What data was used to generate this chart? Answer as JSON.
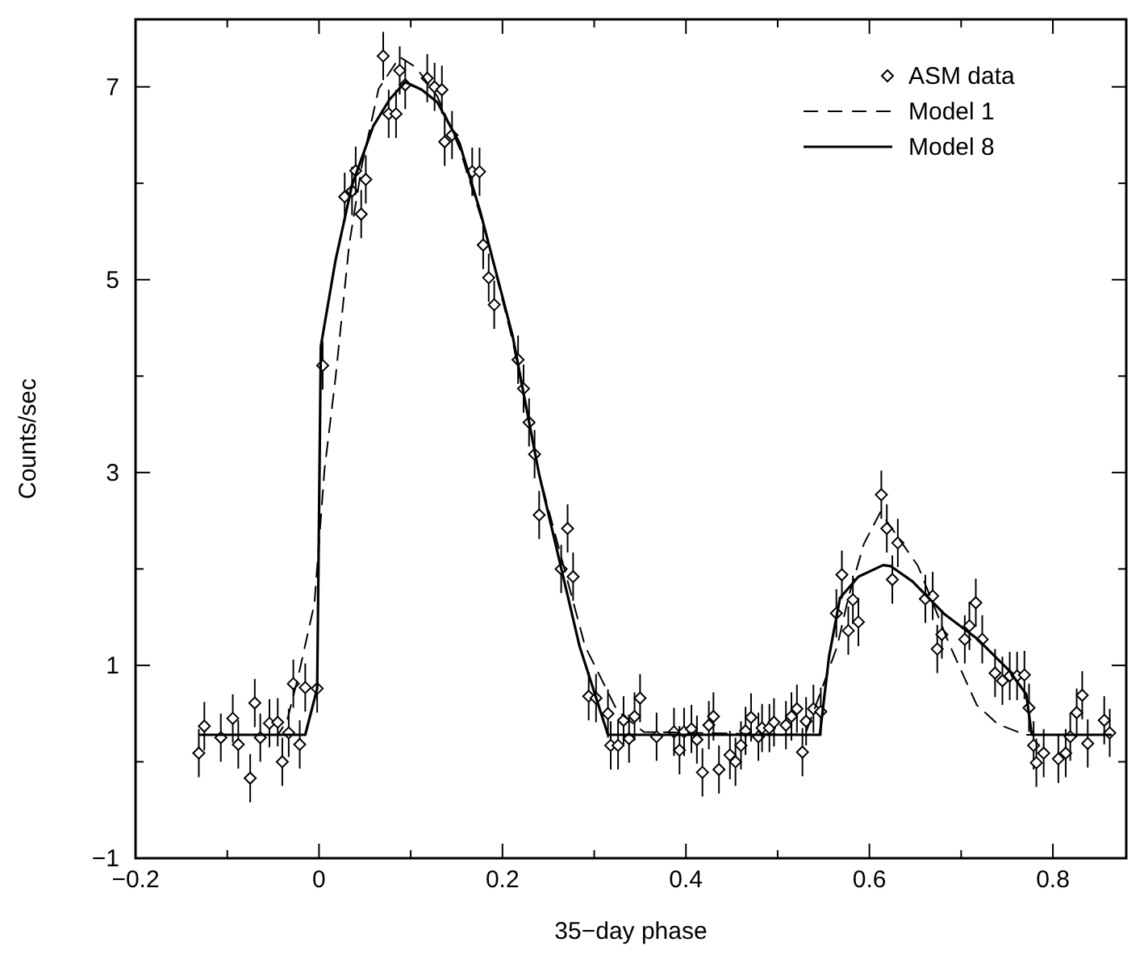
{
  "chart_data": {
    "type": "scatter",
    "xlabel": "35−day phase",
    "ylabel": "Counts/sec",
    "xlim": [
      -0.2,
      0.88
    ],
    "ylim": [
      -1,
      7.7
    ],
    "xticks": [
      {
        "value": -0.2,
        "label": "−0.2"
      },
      {
        "value": -0.1,
        "label": null
      },
      0,
      {
        "value": 0.1,
        "label": null
      },
      0.2,
      {
        "value": 0.3,
        "label": null
      },
      0.4,
      {
        "value": 0.5,
        "label": null
      },
      0.6,
      {
        "value": 0.7,
        "label": null
      },
      0.8
    ],
    "yticks": [
      {
        "value": -1,
        "label": "−1"
      },
      {
        "value": 0,
        "label": null
      },
      1,
      {
        "value": 2,
        "label": null
      },
      3,
      {
        "value": 4,
        "label": null
      },
      5,
      {
        "value": 6,
        "label": null
      },
      7
    ],
    "grid": false,
    "legend": "top right",
    "series": [
      {
        "name": "ASM data",
        "marker": "diamond",
        "color": "#000000",
        "x": [
          -0.131,
          -0.125,
          -0.107,
          -0.094,
          -0.088,
          -0.075,
          -0.07,
          -0.064,
          -0.054,
          -0.045,
          -0.04,
          -0.033,
          -0.028,
          -0.021,
          -0.015,
          -0.002,
          0.004,
          0.028,
          0.036,
          0.04,
          0.046,
          0.051,
          0.07,
          0.076,
          0.084,
          0.088,
          0.094,
          0.118,
          0.126,
          0.134,
          0.137,
          0.145,
          0.167,
          0.175,
          0.179,
          0.185,
          0.191,
          0.217,
          0.223,
          0.229,
          0.235,
          0.24,
          0.264,
          0.271,
          0.277,
          0.294,
          0.302,
          0.315,
          0.318,
          0.326,
          0.332,
          0.338,
          0.344,
          0.35,
          0.368,
          0.387,
          0.393,
          0.398,
          0.406,
          0.412,
          0.418,
          0.425,
          0.43,
          0.436,
          0.448,
          0.454,
          0.46,
          0.465,
          0.471,
          0.479,
          0.483,
          0.491,
          0.496,
          0.509,
          0.515,
          0.521,
          0.527,
          0.531,
          0.539,
          0.547,
          0.564,
          0.57,
          0.577,
          0.582,
          0.588,
          0.613,
          0.619,
          0.625,
          0.631,
          0.661,
          0.669,
          0.674,
          0.679,
          0.704,
          0.709,
          0.716,
          0.723,
          0.737,
          0.745,
          0.753,
          0.761,
          0.769,
          0.774,
          0.779,
          0.782,
          0.79,
          0.806,
          0.814,
          0.819,
          0.826,
          0.832,
          0.838,
          0.856,
          0.862
        ],
        "values": [
          0.09,
          0.37,
          0.25,
          0.45,
          0.18,
          -0.17,
          0.61,
          0.25,
          0.4,
          0.41,
          0.0,
          0.3,
          0.81,
          0.18,
          0.77,
          0.76,
          4.11,
          5.86,
          5.92,
          6.13,
          5.68,
          6.04,
          7.32,
          6.72,
          6.72,
          7.17,
          7.02,
          7.09,
          7.0,
          6.97,
          6.43,
          6.5,
          6.12,
          6.12,
          5.36,
          5.02,
          4.74,
          4.17,
          3.87,
          3.52,
          3.19,
          2.56,
          2.0,
          2.42,
          1.92,
          0.68,
          0.66,
          0.5,
          0.17,
          0.17,
          0.43,
          0.24,
          0.47,
          0.66,
          0.26,
          0.31,
          0.12,
          0.31,
          0.34,
          0.23,
          -0.11,
          0.38,
          0.47,
          -0.08,
          0.07,
          0.0,
          0.17,
          0.32,
          0.46,
          0.26,
          0.35,
          0.35,
          0.41,
          0.38,
          0.47,
          0.55,
          0.1,
          0.42,
          0.55,
          0.52,
          1.54,
          1.94,
          1.36,
          1.68,
          1.45,
          2.77,
          2.42,
          1.89,
          2.27,
          1.69,
          1.72,
          1.17,
          1.32,
          1.27,
          1.41,
          1.65,
          1.27,
          0.92,
          0.84,
          0.89,
          0.89,
          0.9,
          0.56,
          0.17,
          -0.01,
          0.09,
          0.03,
          0.09,
          0.26,
          0.51,
          0.69,
          0.19,
          0.43,
          0.3
        ],
        "errors": [
          0.25,
          0.25,
          0.25,
          0.25,
          0.25,
          0.25,
          0.25,
          0.25,
          0.25,
          0.25,
          0.25,
          0.25,
          0.25,
          0.25,
          0.25,
          0.25,
          0.25,
          0.25,
          0.25,
          0.25,
          0.25,
          0.25,
          0.25,
          0.25,
          0.25,
          0.25,
          0.25,
          0.25,
          0.25,
          0.25,
          0.25,
          0.25,
          0.25,
          0.25,
          0.25,
          0.25,
          0.25,
          0.25,
          0.25,
          0.25,
          0.25,
          0.25,
          0.25,
          0.25,
          0.25,
          0.25,
          0.25,
          0.25,
          0.25,
          0.25,
          0.25,
          0.25,
          0.25,
          0.25,
          0.25,
          0.25,
          0.25,
          0.25,
          0.25,
          0.25,
          0.25,
          0.25,
          0.25,
          0.25,
          0.25,
          0.25,
          0.25,
          0.25,
          0.25,
          0.25,
          0.25,
          0.25,
          0.25,
          0.25,
          0.25,
          0.25,
          0.25,
          0.25,
          0.25,
          0.25,
          0.25,
          0.25,
          0.25,
          0.25,
          0.25,
          0.25,
          0.25,
          0.25,
          0.25,
          0.25,
          0.25,
          0.25,
          0.25,
          0.25,
          0.25,
          0.25,
          0.25,
          0.25,
          0.25,
          0.25,
          0.25,
          0.25,
          0.25,
          0.25,
          0.25,
          0.25,
          0.25,
          0.25,
          0.25,
          0.25,
          0.25,
          0.25,
          0.25,
          0.25
        ]
      },
      {
        "name": "Model 1",
        "type": "line",
        "line_style": "dashed",
        "color": "#000000",
        "x": [
          -0.13,
          -0.045,
          -0.035,
          -0.023,
          -0.005,
          0.006,
          0.018,
          0.033,
          0.047,
          0.065,
          0.088,
          0.106,
          0.129,
          0.153,
          0.182,
          0.211,
          0.24,
          0.29,
          0.325,
          0.354,
          0.53,
          0.565,
          0.577,
          0.594,
          0.612,
          0.653,
          0.688,
          0.717,
          0.74,
          0.77,
          0.863
        ],
        "values": [
          0.28,
          0.28,
          0.42,
          0.87,
          1.64,
          3.03,
          3.98,
          5.37,
          6.2,
          6.98,
          7.31,
          7.2,
          6.9,
          6.37,
          5.48,
          4.37,
          2.98,
          1.2,
          0.53,
          0.31,
          0.28,
          1.2,
          1.7,
          2.26,
          2.59,
          2.03,
          1.2,
          0.59,
          0.39,
          0.28,
          0.28
        ]
      },
      {
        "name": "Model 8",
        "type": "line",
        "line_style": "solid",
        "color": "#000000",
        "x": [
          -0.13,
          -0.015,
          -0.002,
          0.002,
          0.018,
          0.036,
          0.059,
          0.077,
          0.094,
          0.112,
          0.129,
          0.153,
          0.176,
          0.211,
          0.24,
          0.284,
          0.315,
          0.546,
          0.556,
          0.568,
          0.588,
          0.615,
          0.623,
          0.647,
          0.682,
          0.717,
          0.752,
          0.771,
          0.777,
          0.863
        ],
        "values": [
          0.28,
          0.28,
          0.76,
          4.31,
          5.2,
          5.98,
          6.59,
          6.87,
          7.05,
          6.97,
          6.84,
          6.42,
          5.7,
          4.42,
          2.98,
          1.2,
          0.28,
          0.28,
          1.09,
          1.7,
          1.92,
          2.04,
          2.03,
          1.87,
          1.53,
          1.28,
          0.95,
          0.7,
          0.28,
          0.28
        ]
      }
    ]
  }
}
